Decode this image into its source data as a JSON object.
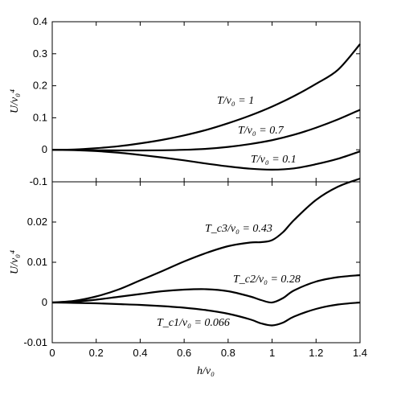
{
  "chart_data": [
    {
      "type": "line",
      "panel": "top",
      "xlim": [
        0,
        1.4
      ],
      "ylim": [
        -0.1,
        0.4
      ],
      "yticks": [
        "-0.1",
        "0",
        "0.1",
        "0.2",
        "0.3",
        "0.4"
      ],
      "ylabel": "U/v₀⁴",
      "grid": false,
      "series": [
        {
          "name": "T/v₀ = 1",
          "x": [
            0,
            0.1,
            0.2,
            0.3,
            0.4,
            0.5,
            0.6,
            0.7,
            0.8,
            0.9,
            1.0,
            1.1,
            1.2,
            1.3,
            1.4
          ],
          "values": [
            0,
            0.001,
            0.005,
            0.011,
            0.02,
            0.031,
            0.045,
            0.062,
            0.083,
            0.107,
            0.135,
            0.168,
            0.206,
            0.25,
            0.33
          ]
        },
        {
          "name": "T/v₀ = 0.7",
          "x": [
            0,
            0.1,
            0.2,
            0.3,
            0.4,
            0.5,
            0.6,
            0.7,
            0.8,
            0.9,
            1.0,
            1.1,
            1.2,
            1.3,
            1.4
          ],
          "values": [
            0,
            -0.0005,
            -0.0015,
            -0.002,
            -0.002,
            -0.0015,
            0.0,
            0.003,
            0.009,
            0.018,
            0.03,
            0.047,
            0.069,
            0.095,
            0.125
          ]
        },
        {
          "name": "T/v₀ = 0.1",
          "x": [
            0,
            0.1,
            0.2,
            0.3,
            0.4,
            0.5,
            0.6,
            0.7,
            0.8,
            0.9,
            1.0,
            1.1,
            1.2,
            1.3,
            1.4
          ],
          "values": [
            0,
            -0.001,
            -0.004,
            -0.009,
            -0.016,
            -0.024,
            -0.033,
            -0.043,
            -0.052,
            -0.059,
            -0.062,
            -0.058,
            -0.045,
            -0.028,
            -0.005
          ]
        }
      ]
    },
    {
      "type": "line",
      "panel": "bottom",
      "xlim": [
        0,
        1.4
      ],
      "ylim": [
        -0.01,
        0.03
      ],
      "xticks": [
        "0",
        "0.2",
        "0.4",
        "0.6",
        "0.8",
        "1",
        "1.2",
        "1.4"
      ],
      "yticks": [
        "-0.01",
        "0",
        "0.01",
        "0.02"
      ],
      "xlabel": "h/v₀",
      "ylabel": "U/v₀⁴",
      "grid": false,
      "series": [
        {
          "name": "T_c3/v₀ = 0.43",
          "x": [
            0,
            0.1,
            0.2,
            0.3,
            0.4,
            0.5,
            0.6,
            0.7,
            0.8,
            0.9,
            0.95,
            1.0,
            1.05,
            1.1,
            1.2,
            1.3,
            1.4
          ],
          "values": [
            0,
            0.0004,
            0.0015,
            0.0032,
            0.0055,
            0.0078,
            0.0102,
            0.0123,
            0.014,
            0.0149,
            0.015,
            0.0155,
            0.0175,
            0.0205,
            0.0255,
            0.0288,
            0.0308
          ]
        },
        {
          "name": "T_c2/v₀ = 0.28",
          "x": [
            0,
            0.1,
            0.2,
            0.3,
            0.4,
            0.5,
            0.6,
            0.7,
            0.8,
            0.9,
            0.95,
            1.0,
            1.05,
            1.1,
            1.2,
            1.3,
            1.4
          ],
          "values": [
            0,
            0.0002,
            0.0007,
            0.0014,
            0.0021,
            0.0028,
            0.0032,
            0.0033,
            0.0028,
            0.0015,
            0.0006,
            0.0,
            0.0011,
            0.003,
            0.0052,
            0.0063,
            0.0068
          ]
        },
        {
          "name": "T_c1/v₀ = 0.066",
          "x": [
            0,
            0.1,
            0.2,
            0.3,
            0.4,
            0.5,
            0.6,
            0.7,
            0.8,
            0.9,
            0.95,
            1.0,
            1.05,
            1.1,
            1.2,
            1.3,
            1.4
          ],
          "values": [
            0,
            -0.0001,
            -0.0002,
            -0.0004,
            -0.0006,
            -0.0009,
            -0.0013,
            -0.0019,
            -0.0028,
            -0.0042,
            -0.0052,
            -0.0057,
            -0.005,
            -0.0035,
            -0.0016,
            -0.0005,
            0.0
          ]
        }
      ]
    }
  ]
}
